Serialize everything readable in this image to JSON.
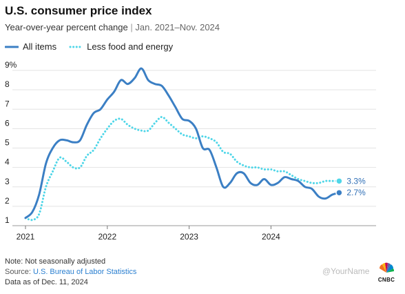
{
  "header": {
    "title": "U.S. consumer price index",
    "subtitle_main": "Year-over-year percent change",
    "subtitle_sep": "|",
    "subtitle_range": "Jan. 2021–Nov. 2024"
  },
  "legend": {
    "all_items": "All items",
    "core": "Less food and energy"
  },
  "footer": {
    "note": "Note: Not seasonally adjusted",
    "source_prefix": "Source:",
    "source_link": "U.S. Bureau of Labor Statistics",
    "data_as_of": "Data as of Dec. 11, 2024"
  },
  "watermark": "@YourName",
  "logo_text": "CNBC",
  "colors": {
    "all_items": "#3b7fc4",
    "core": "#4fd6e8",
    "grid": "#e3e3e3"
  },
  "chart_data": {
    "type": "line",
    "title": "U.S. consumer price index",
    "xlabel": "",
    "ylabel": "",
    "ylim": [
      1,
      9
    ],
    "yticks": [
      1,
      2,
      3,
      4,
      5,
      6,
      7,
      8,
      9
    ],
    "ytick_labels": [
      "1",
      "2",
      "3",
      "4",
      "5",
      "6",
      "7",
      "8",
      "9%"
    ],
    "xticks": [
      2021,
      2022,
      2023,
      2024
    ],
    "xtick_labels": [
      "2021",
      "2022",
      "2023",
      "2024"
    ],
    "grid": true,
    "x": [
      "2021-01",
      "2021-02",
      "2021-03",
      "2021-04",
      "2021-05",
      "2021-06",
      "2021-07",
      "2021-08",
      "2021-09",
      "2021-10",
      "2021-11",
      "2021-12",
      "2022-01",
      "2022-02",
      "2022-03",
      "2022-04",
      "2022-05",
      "2022-06",
      "2022-07",
      "2022-08",
      "2022-09",
      "2022-10",
      "2022-11",
      "2022-12",
      "2023-01",
      "2023-02",
      "2023-03",
      "2023-04",
      "2023-05",
      "2023-06",
      "2023-07",
      "2023-08",
      "2023-09",
      "2023-10",
      "2023-11",
      "2023-12",
      "2024-01",
      "2024-02",
      "2024-03",
      "2024-04",
      "2024-05",
      "2024-06",
      "2024-07",
      "2024-08",
      "2024-09",
      "2024-10",
      "2024-11"
    ],
    "series": [
      {
        "name": "All items",
        "style": "solid",
        "end_label": "2.7%",
        "values": [
          1.4,
          1.7,
          2.6,
          4.2,
          5.0,
          5.4,
          5.4,
          5.3,
          5.4,
          6.2,
          6.8,
          7.0,
          7.5,
          7.9,
          8.5,
          8.3,
          8.6,
          9.1,
          8.5,
          8.3,
          8.2,
          7.7,
          7.1,
          6.5,
          6.4,
          6.0,
          5.0,
          4.9,
          4.0,
          3.0,
          3.2,
          3.7,
          3.7,
          3.2,
          3.1,
          3.4,
          3.1,
          3.2,
          3.5,
          3.4,
          3.3,
          3.0,
          2.9,
          2.5,
          2.4,
          2.6,
          2.7
        ]
      },
      {
        "name": "Less food and energy",
        "style": "dotted",
        "end_label": "3.3%",
        "values": [
          1.4,
          1.3,
          1.6,
          3.0,
          3.8,
          4.5,
          4.3,
          4.0,
          4.0,
          4.6,
          4.9,
          5.5,
          6.0,
          6.4,
          6.5,
          6.2,
          6.0,
          5.9,
          5.9,
          6.3,
          6.6,
          6.3,
          6.0,
          5.7,
          5.6,
          5.5,
          5.6,
          5.5,
          5.3,
          4.8,
          4.7,
          4.3,
          4.1,
          4.0,
          4.0,
          3.9,
          3.9,
          3.8,
          3.8,
          3.6,
          3.4,
          3.3,
          3.2,
          3.2,
          3.3,
          3.3,
          3.3
        ]
      }
    ]
  }
}
